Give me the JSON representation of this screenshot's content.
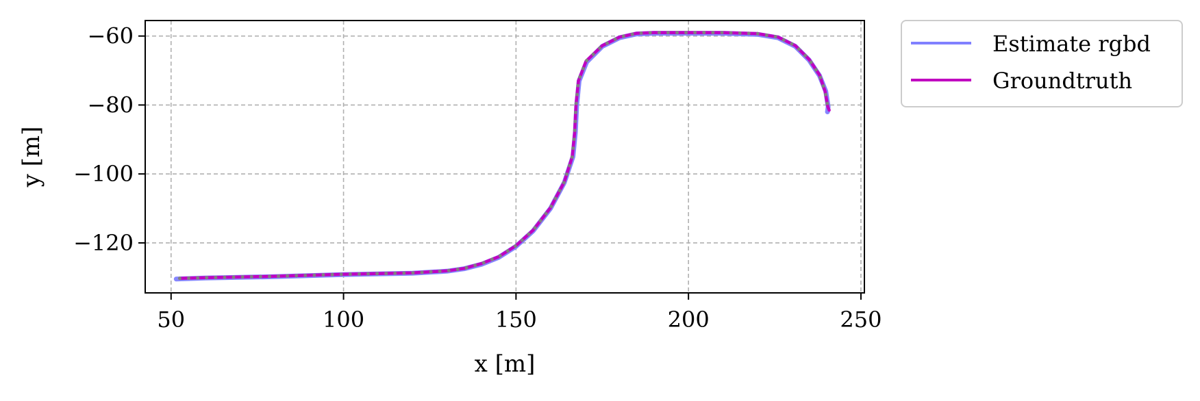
{
  "chart_data": {
    "type": "line",
    "title": "",
    "xlabel": "x [m]",
    "ylabel": "y [m]",
    "xlim": [
      42.5,
      251
    ],
    "ylim": [
      -134.5,
      -55.5
    ],
    "xticks": [
      50,
      100,
      150,
      200,
      250
    ],
    "yticks": [
      -60,
      -80,
      -100,
      -120
    ],
    "xtick_labels": [
      "50",
      "100",
      "150",
      "200",
      "250"
    ],
    "ytick_labels": [
      "−60",
      "−80",
      "−100",
      "−120"
    ],
    "grid": true,
    "legend_position": "outside-top-right",
    "series": [
      {
        "name": "Estimate rgbd",
        "color": "#8080ff",
        "style": "solid",
        "points": [
          [
            51.5,
            -130.5
          ],
          [
            60,
            -130.2
          ],
          [
            70,
            -130.0
          ],
          [
            80,
            -129.8
          ],
          [
            90,
            -129.5
          ],
          [
            100,
            -129.2
          ],
          [
            110,
            -129.0
          ],
          [
            120,
            -128.8
          ],
          [
            130,
            -128.2
          ],
          [
            135,
            -127.5
          ],
          [
            140,
            -126.2
          ],
          [
            145,
            -124.2
          ],
          [
            150,
            -121.0
          ],
          [
            155,
            -116.5
          ],
          [
            160,
            -110.0
          ],
          [
            164,
            -102.5
          ],
          [
            166.5,
            -95.0
          ],
          [
            167.2,
            -88.0
          ],
          [
            167.6,
            -80.0
          ],
          [
            168.3,
            -73.0
          ],
          [
            170.5,
            -67.5
          ],
          [
            175,
            -63.0
          ],
          [
            180,
            -60.5
          ],
          [
            185,
            -59.4
          ],
          [
            190,
            -59.2
          ],
          [
            200,
            -59.2
          ],
          [
            210,
            -59.2
          ],
          [
            220,
            -59.5
          ],
          [
            226,
            -60.5
          ],
          [
            231,
            -63.0
          ],
          [
            235,
            -67.0
          ],
          [
            238,
            -71.5
          ],
          [
            239.8,
            -76.0
          ],
          [
            240.5,
            -80.5
          ],
          [
            240.3,
            -82.0
          ]
        ]
      },
      {
        "name": "Groundtruth",
        "color": "#c000c0",
        "style": "solid",
        "points": [
          [
            52.5,
            -130.3
          ],
          [
            60,
            -130.1
          ],
          [
            70,
            -129.9
          ],
          [
            80,
            -129.7
          ],
          [
            90,
            -129.4
          ],
          [
            100,
            -129.1
          ],
          [
            110,
            -128.9
          ],
          [
            120,
            -128.7
          ],
          [
            130,
            -128.1
          ],
          [
            135,
            -127.4
          ],
          [
            140,
            -126.0
          ],
          [
            145,
            -124.0
          ],
          [
            150,
            -120.8
          ],
          [
            155,
            -116.3
          ],
          [
            160,
            -109.8
          ],
          [
            164,
            -102.3
          ],
          [
            166.3,
            -95.0
          ],
          [
            167.0,
            -88.0
          ],
          [
            167.4,
            -80.0
          ],
          [
            168.1,
            -73.0
          ],
          [
            170.3,
            -67.3
          ],
          [
            175,
            -62.8
          ],
          [
            180,
            -60.3
          ],
          [
            185,
            -59.2
          ],
          [
            190,
            -59.0
          ],
          [
            200,
            -59.0
          ],
          [
            210,
            -59.0
          ],
          [
            220,
            -59.3
          ],
          [
            226,
            -60.3
          ],
          [
            231,
            -62.8
          ],
          [
            235,
            -66.8
          ],
          [
            238,
            -71.3
          ],
          [
            239.6,
            -76.0
          ],
          [
            240.4,
            -80.5
          ],
          [
            240.8,
            -81.5
          ]
        ]
      },
      {
        "color": "#808080",
        "style": "dotted",
        "points": [
          [
            52.5,
            -130.3
          ],
          [
            60,
            -130.1
          ],
          [
            70,
            -129.9
          ],
          [
            80,
            -129.7
          ],
          [
            90,
            -129.4
          ],
          [
            100,
            -129.1
          ],
          [
            110,
            -128.9
          ],
          [
            120,
            -128.7
          ],
          [
            130,
            -128.1
          ],
          [
            135,
            -127.4
          ],
          [
            140,
            -126.0
          ],
          [
            145,
            -124.0
          ],
          [
            150,
            -120.8
          ],
          [
            155,
            -116.3
          ],
          [
            160,
            -109.8
          ],
          [
            164,
            -102.3
          ],
          [
            166.3,
            -95.0
          ],
          [
            167.0,
            -88.0
          ],
          [
            167.4,
            -80.0
          ],
          [
            168.1,
            -73.0
          ],
          [
            170.3,
            -67.3
          ],
          [
            175,
            -62.8
          ],
          [
            180,
            -60.3
          ],
          [
            185,
            -59.2
          ],
          [
            190,
            -59.0
          ],
          [
            200,
            -59.0
          ],
          [
            210,
            -59.0
          ],
          [
            220,
            -59.3
          ],
          [
            226,
            -60.3
          ],
          [
            231,
            -62.8
          ],
          [
            235,
            -66.8
          ],
          [
            238,
            -71.3
          ],
          [
            239.6,
            -76.0
          ],
          [
            240.4,
            -80.5
          ],
          [
            240.8,
            -81.5
          ]
        ]
      }
    ]
  }
}
